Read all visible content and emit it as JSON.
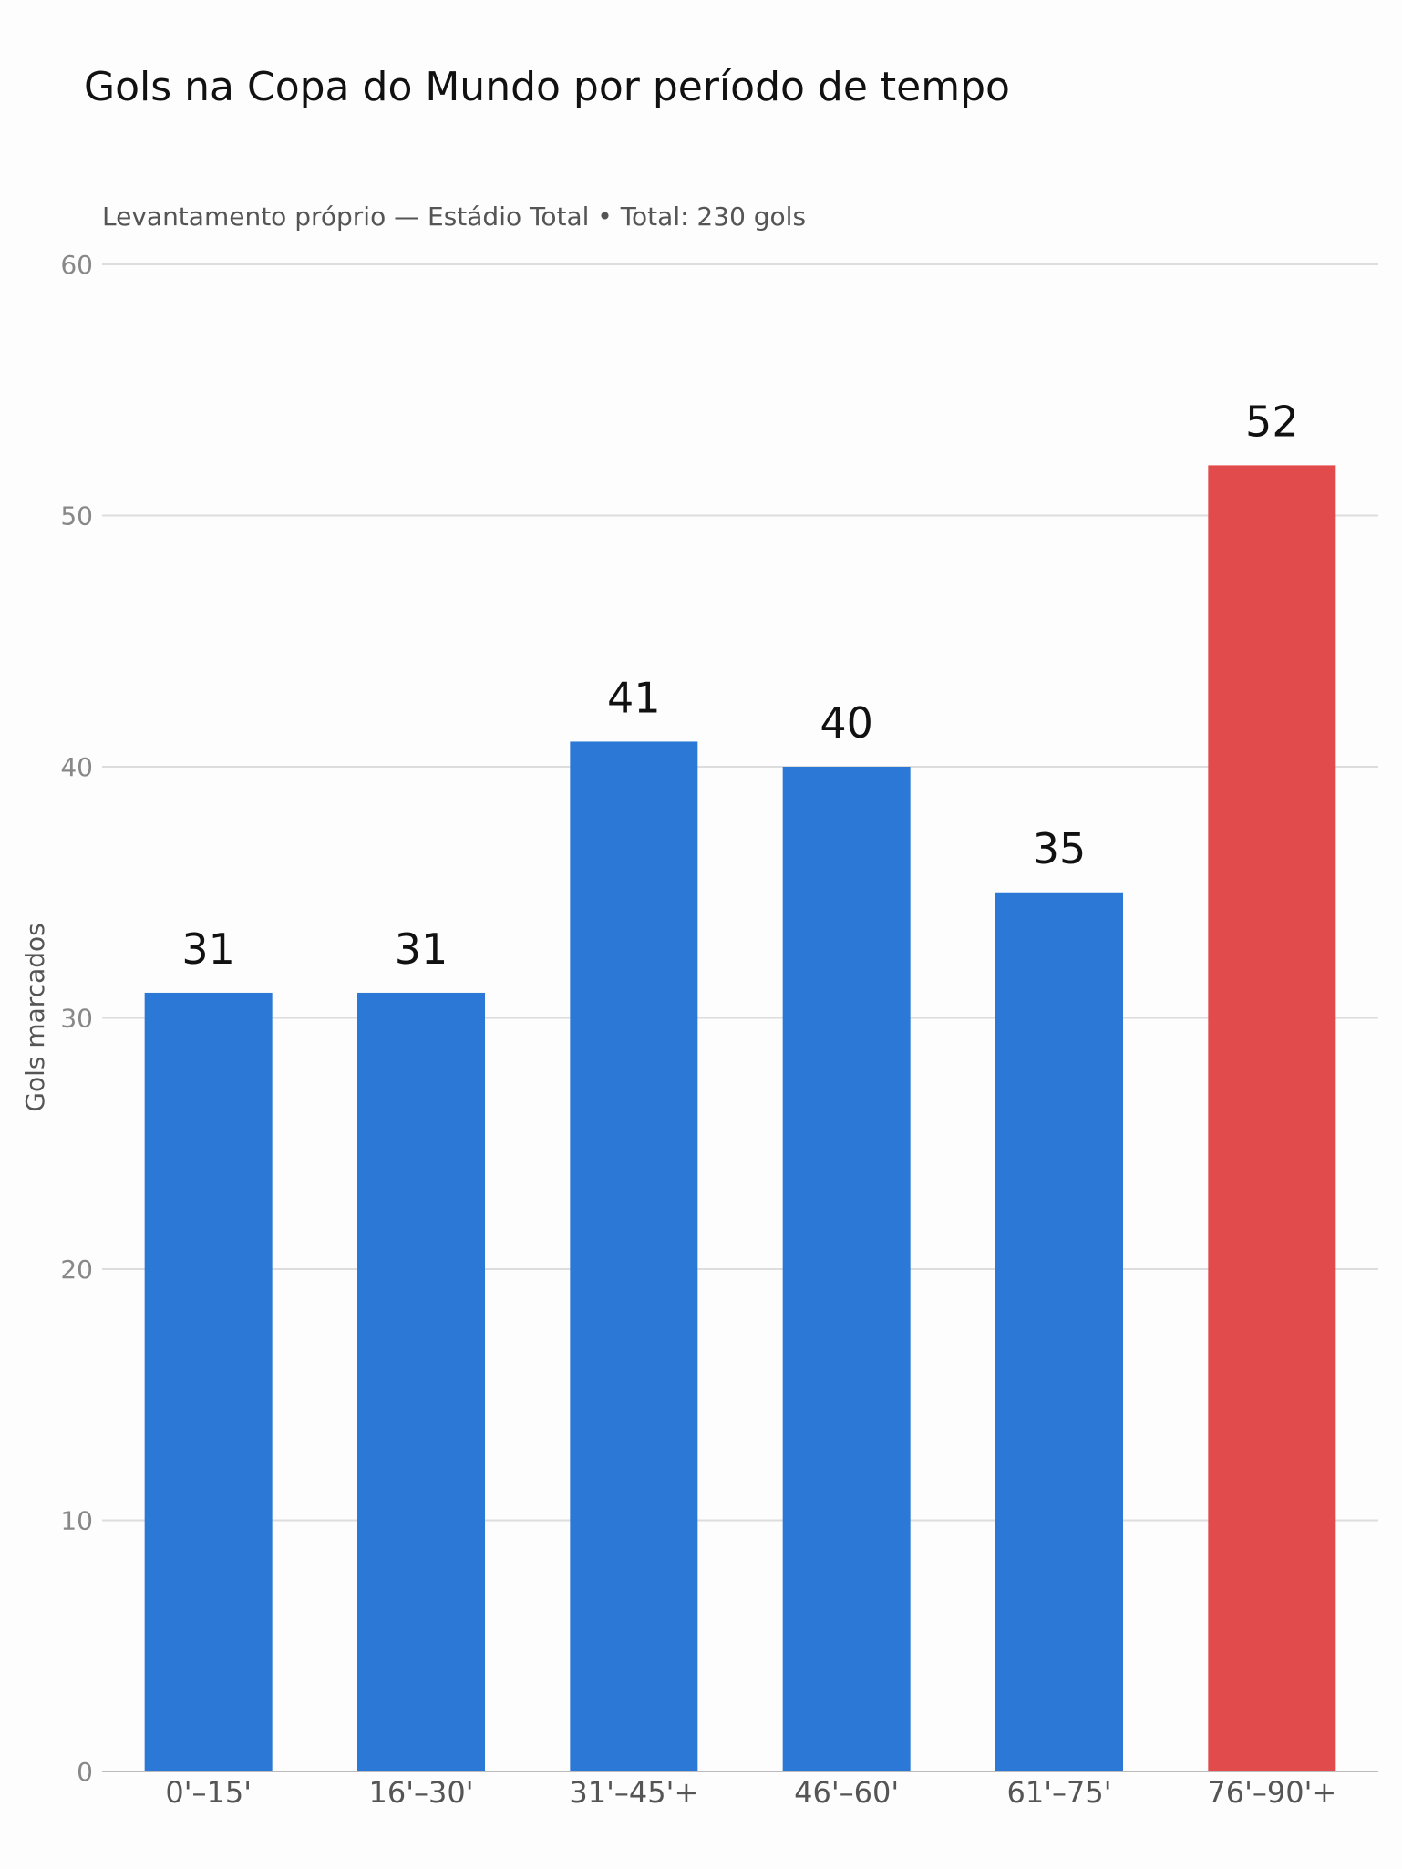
{
  "chart_data": {
    "type": "bar",
    "title": "Gols na Copa do Mundo por período de tempo",
    "subtitle": "Levantamento próprio — Estádio Total • Total: 230 gols",
    "xlabel": "",
    "ylabel": "Gols marcados",
    "categories": [
      "0'–15'",
      "16'–30'",
      "31'–45'+",
      "46'–60'",
      "61'–75'",
      "76'–90'+"
    ],
    "values": [
      31,
      31,
      41,
      40,
      35,
      52
    ],
    "value_labels": [
      "31",
      "31",
      "41",
      "40",
      "35",
      "52"
    ],
    "yticks": [
      0,
      10,
      20,
      30,
      40,
      50,
      60
    ],
    "ytick_labels": [
      "0",
      "10",
      "20",
      "30",
      "40",
      "50",
      "60"
    ],
    "ylim": [
      0,
      60
    ],
    "grid": true,
    "colors": {
      "default": "#2b78d6",
      "highlight": "#e24b4b",
      "grid": "#dddddd",
      "axis": "#bbbbbb"
    },
    "highlight_index": 5
  }
}
